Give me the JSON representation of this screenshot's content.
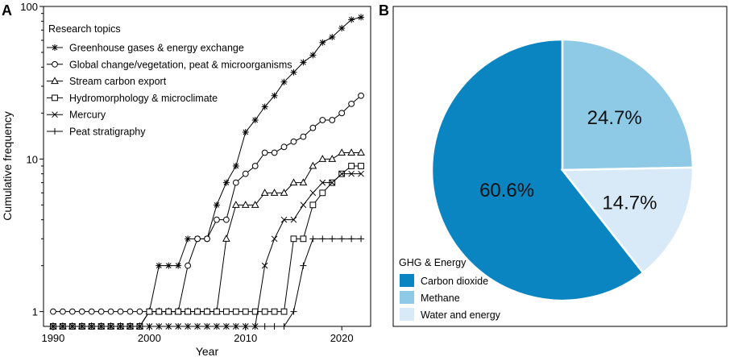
{
  "panels": {
    "a_letter": "A",
    "b_letter": "B"
  },
  "chart_data": [
    {
      "type": "line",
      "panel": "A",
      "title": "",
      "xlabel": "Year",
      "ylabel": "Cumulative frequency",
      "yscale": "log",
      "xlim": [
        1989,
        2023
      ],
      "ylim": [
        0.8,
        100
      ],
      "xticks": [
        1990,
        2000,
        2010,
        2020
      ],
      "yticks": [
        1,
        10,
        100
      ],
      "grid": false,
      "legend": {
        "title": "Research topics",
        "position": "top-left"
      },
      "x": [
        1990,
        1991,
        1992,
        1993,
        1994,
        1995,
        1996,
        1997,
        1998,
        1999,
        2000,
        2001,
        2002,
        2003,
        2004,
        2005,
        2006,
        2007,
        2008,
        2009,
        2010,
        2011,
        2012,
        2013,
        2014,
        2015,
        2016,
        2017,
        2018,
        2019,
        2020,
        2021,
        2022
      ],
      "series": [
        {
          "name": "Greenhouse gases & energy exchange",
          "marker": "asterisk",
          "values": [
            0.8,
            0.8,
            0.8,
            0.8,
            0.8,
            0.8,
            0.8,
            0.8,
            0.8,
            0.8,
            1,
            2,
            2,
            2,
            3,
            3,
            3,
            5,
            7,
            9,
            15,
            18,
            22,
            26,
            32,
            37,
            43,
            48,
            58,
            63,
            72,
            82,
            85
          ]
        },
        {
          "name": "Global change/vegetation, peat & microorganisms",
          "marker": "circle",
          "values": [
            1,
            1,
            1,
            1,
            1,
            1,
            1,
            1,
            1,
            1,
            1,
            1,
            1,
            1,
            2,
            3,
            3,
            4,
            4,
            7,
            8,
            9,
            11,
            11,
            12,
            13,
            14,
            16,
            18,
            18,
            20,
            23,
            26
          ]
        },
        {
          "name": "Stream carbon export",
          "marker": "triangle",
          "values": [
            0.8,
            0.8,
            0.8,
            0.8,
            0.8,
            0.8,
            0.8,
            0.8,
            0.8,
            0.8,
            1,
            1,
            1,
            1,
            1,
            1,
            1,
            1,
            3,
            5,
            5,
            5,
            6,
            6,
            6,
            7,
            7,
            9,
            10,
            10,
            11,
            11,
            11
          ]
        },
        {
          "name": "Hydromorphology & microclimate",
          "marker": "square",
          "values": [
            0.8,
            0.8,
            0.8,
            0.8,
            0.8,
            0.8,
            0.8,
            0.8,
            0.8,
            0.8,
            1,
            1,
            1,
            1,
            1,
            1,
            1,
            1,
            1,
            1,
            1,
            1,
            1,
            1,
            1,
            3,
            3,
            5,
            6,
            7,
            8,
            9,
            9
          ]
        },
        {
          "name": "Mercury",
          "marker": "cross",
          "values": [
            0.8,
            0.8,
            0.8,
            0.8,
            0.8,
            0.8,
            0.8,
            0.8,
            0.8,
            0.8,
            0.8,
            0.8,
            0.8,
            0.8,
            0.8,
            0.8,
            0.8,
            0.8,
            0.8,
            0.8,
            0.8,
            0.8,
            2,
            3,
            4,
            4,
            5,
            6,
            7,
            7,
            8,
            8,
            8
          ]
        },
        {
          "name": "Peat stratigraphy",
          "marker": "plus",
          "values": [
            0.8,
            0.8,
            0.8,
            0.8,
            0.8,
            0.8,
            0.8,
            0.8,
            0.8,
            0.8,
            0.8,
            0.8,
            0.8,
            0.8,
            0.8,
            0.8,
            0.8,
            0.8,
            0.8,
            0.8,
            0.8,
            0.8,
            0.8,
            0.8,
            0.8,
            1,
            2,
            3,
            3,
            3,
            3,
            3,
            3
          ]
        }
      ]
    },
    {
      "type": "pie",
      "panel": "B",
      "title": "",
      "legend": {
        "title": "GHG & Energy",
        "position": "bottom-left"
      },
      "slices": [
        {
          "name": "Carbon dioxide",
          "value": 60.6,
          "label": "60.6%",
          "color": "#0a85c2"
        },
        {
          "name": "Methane",
          "value": 24.7,
          "label": "24.7%",
          "color": "#8ecae6"
        },
        {
          "name": "Water and energy",
          "value": 14.7,
          "label": "14.7%",
          "color": "#d8eaf7"
        }
      ]
    }
  ]
}
